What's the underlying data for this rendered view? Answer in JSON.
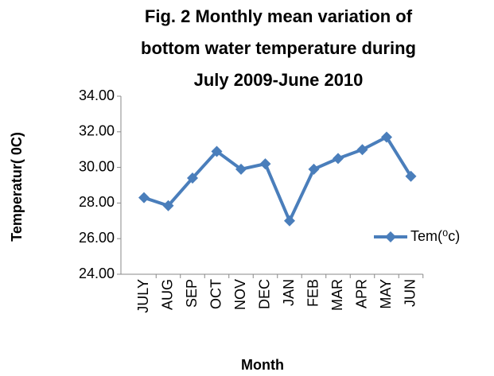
{
  "chart_data": {
    "type": "line",
    "title": [
      "Fig. 2  Monthly mean variation of",
      "bottom water temperature during",
      "July 2009-June 2010"
    ],
    "x_label": "Month",
    "y_label": "Temperatur( 0C)",
    "categories": [
      "JULY",
      "AUG",
      "SEP",
      "OCT",
      "NOV",
      "DEC",
      "JAN",
      "FEB",
      "MAR",
      "APR",
      "MAY",
      "JUN"
    ],
    "series": [
      {
        "name": "Tem(⁰c)",
        "color": "#4a7ebb",
        "values": [
          28.3,
          27.85,
          29.4,
          30.9,
          29.9,
          30.2,
          27.0,
          29.9,
          30.5,
          31.0,
          31.7,
          29.5
        ]
      }
    ],
    "ylim": [
      24,
      34
    ],
    "yticks": [
      {
        "value": 24,
        "label": "24.00"
      },
      {
        "value": 26,
        "label": "26.00"
      },
      {
        "value": 28,
        "label": "28.00"
      },
      {
        "value": 30,
        "label": "30.00"
      },
      {
        "value": 32,
        "label": "32.00"
      },
      {
        "value": 34,
        "label": "34.00"
      }
    ],
    "grid": false,
    "legend": "right"
  }
}
